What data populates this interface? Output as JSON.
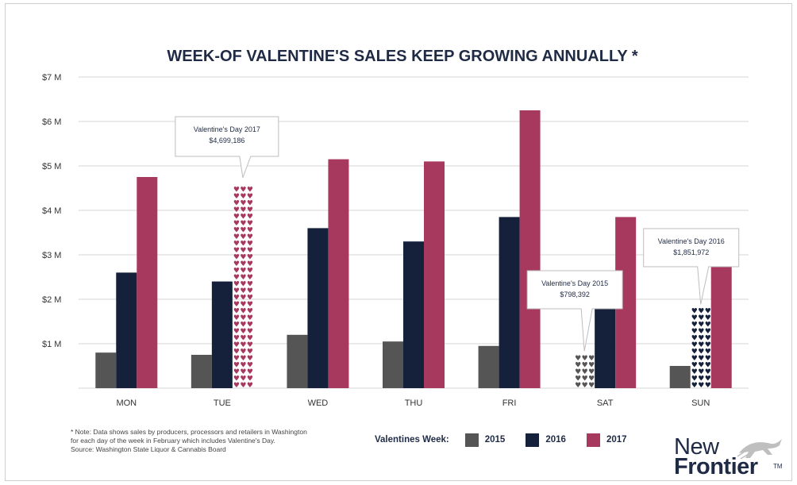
{
  "chart_data": {
    "type": "bar",
    "title": "WEEK-OF VALENTINE'S SALES KEEP GROWING ANNUALLY *",
    "categories": [
      "MON",
      "TUE",
      "WED",
      "THU",
      "FRI",
      "SAT",
      "SUN"
    ],
    "series": [
      {
        "name": "2015",
        "color": "#555555",
        "values": [
          0.8,
          0.75,
          1.2,
          1.05,
          0.95,
          0.798392,
          0.5
        ]
      },
      {
        "name": "2016",
        "color": "#15213b",
        "values": [
          2.6,
          2.4,
          3.6,
          3.3,
          3.85,
          2.6,
          1.851972
        ]
      },
      {
        "name": "2017",
        "color": "#a8395e",
        "values": [
          4.75,
          4.699186,
          5.15,
          5.1,
          6.25,
          3.85,
          2.95
        ]
      }
    ],
    "ylim": [
      0,
      7
    ],
    "yticks": [
      "$7 M",
      "$6 M",
      "$5 M",
      "$4 M",
      "$3 M",
      "$2 M",
      "$1 M"
    ],
    "ytick_values": [
      7,
      6,
      5,
      4,
      3,
      2,
      1
    ],
    "grid": true,
    "legend": {
      "title": "Valentines Week:",
      "position": "bottom"
    },
    "annotations": [
      {
        "category": "TUE",
        "series": "2017",
        "line1": "Valentine's Day 2017",
        "line2": "$4,699,186"
      },
      {
        "category": "SAT",
        "series": "2015",
        "line1": "Valentine's Day 2015",
        "line2": "$798,392"
      },
      {
        "category": "SUN",
        "series": "2016",
        "line1": "Valentine's Day 2016",
        "line2": "$1,851,972"
      }
    ]
  },
  "note": {
    "line1": "* Note: Data shows sales by producers, processors and retailers in Washington",
    "line2": "for each day of the week in February which includes Valentine's Day.",
    "line3": "Source: Washington State Liquor & Cannabis Board"
  },
  "logo": {
    "line1": "New",
    "line2": "Frontier",
    "mark": "TM",
    "icon": "running-horse-icon"
  }
}
